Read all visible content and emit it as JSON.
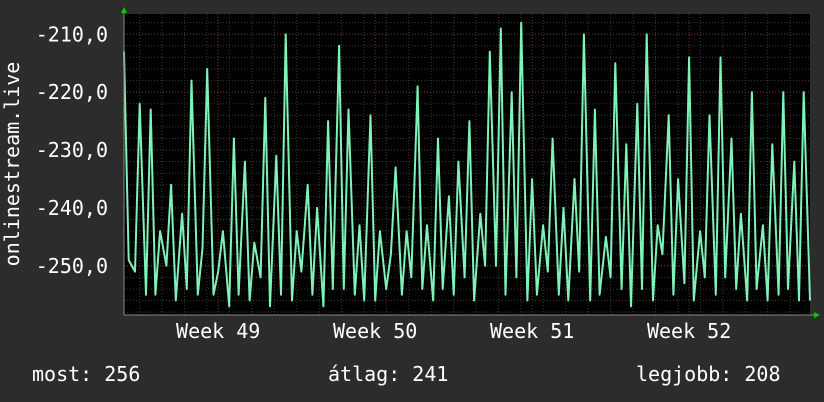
{
  "colors": {
    "background": "#2c2c2c",
    "plot_background": "#000000",
    "line": "#7ff2b8",
    "axis_arrow": "#00cc00",
    "text": "#ffffff",
    "grid_minor": "#3a3a3a",
    "grid_major": "#7a2c2c"
  },
  "stats": {
    "now_label": "most:",
    "now_value": "256",
    "avg_label": "átlag:",
    "avg_value": "241",
    "best_label": "legjobb:",
    "best_value": "208"
  },
  "chart_data": {
    "type": "line",
    "title": "",
    "ylabel": "onlinestream.live",
    "xlabel": "",
    "ylim": [
      -258.5,
      -206.5
    ],
    "yticks": [
      -210,
      -220,
      -230,
      -240,
      -250
    ],
    "ytick_labels": [
      "-210,0",
      "-220,0",
      "-230,0",
      "-240,0",
      "-250,0"
    ],
    "xlim": [
      48.4,
      52.77
    ],
    "xticks": [
      49,
      50,
      51,
      52
    ],
    "xtick_labels": [
      "Week 49",
      "Week 50",
      "Week 51",
      "Week 52"
    ],
    "grid": true,
    "series": [
      {
        "x": [
          48.4,
          48.43,
          48.47,
          48.5,
          48.54,
          48.57,
          48.6,
          48.63,
          48.67,
          48.7,
          48.73,
          48.77,
          48.8,
          48.83,
          48.87,
          48.9,
          48.93,
          48.97,
          49.0,
          49.03,
          49.07,
          49.1,
          49.13,
          49.17,
          49.2,
          49.23,
          49.27,
          49.3,
          49.33,
          49.37,
          49.4,
          49.43,
          49.47,
          49.5,
          49.53,
          49.57,
          49.6,
          49.63,
          49.67,
          49.7,
          49.73,
          49.77,
          49.8,
          49.83,
          49.87,
          49.9,
          49.93,
          49.97,
          50.0,
          50.03,
          50.07,
          50.1,
          50.13,
          50.17,
          50.2,
          50.23,
          50.27,
          50.3,
          50.33,
          50.37,
          50.4,
          50.43,
          50.47,
          50.5,
          50.53,
          50.57,
          50.6,
          50.63,
          50.67,
          50.7,
          50.73,
          50.77,
          50.8,
          50.83,
          50.87,
          50.9,
          50.93,
          50.97,
          51.0,
          51.03,
          51.07,
          51.1,
          51.13,
          51.17,
          51.2,
          51.23,
          51.27,
          51.3,
          51.33,
          51.37,
          51.4,
          51.43,
          51.47,
          51.5,
          51.53,
          51.57,
          51.6,
          51.63,
          51.67,
          51.7,
          51.73,
          51.77,
          51.8,
          51.83,
          51.87,
          51.9,
          51.93,
          51.97,
          52.0,
          52.03,
          52.07,
          52.1,
          52.13,
          52.17,
          52.2,
          52.23,
          52.27,
          52.3,
          52.33,
          52.37,
          52.4,
          52.43,
          52.47,
          52.5,
          52.53,
          52.57,
          52.6,
          52.63,
          52.67,
          52.7,
          52.73,
          52.77
        ],
        "values": [
          -213,
          -249,
          -251,
          -222,
          -255,
          -223,
          -255,
          -244,
          -250,
          -236,
          -256,
          -241,
          -254,
          -218,
          -255,
          -247,
          -216,
          -255,
          -251,
          -244,
          -257,
          -228,
          -255,
          -232,
          -256,
          -246,
          -252,
          -221,
          -257,
          -231,
          -255,
          -210,
          -256,
          -244,
          -251,
          -236,
          -255,
          -240,
          -257,
          -225,
          -254,
          -212,
          -254,
          -223,
          -255,
          -243,
          -256,
          -224,
          -256,
          -244,
          -254,
          -248,
          -233,
          -255,
          -244,
          -252,
          -219,
          -254,
          -243,
          -256,
          -228,
          -254,
          -238,
          -255,
          -232,
          -252,
          -225,
          -256,
          -241,
          -250,
          -213,
          -250,
          -209,
          -255,
          -220,
          -252,
          -208,
          -256,
          -235,
          -255,
          -243,
          -251,
          -228,
          -255,
          -240,
          -256,
          -235,
          -251,
          -210,
          -256,
          -223,
          -255,
          -245,
          -252,
          -215,
          -254,
          -229,
          -257,
          -222,
          -254,
          -210,
          -256,
          -243,
          -248,
          -224,
          -255,
          -235,
          -253,
          -214,
          -256,
          -244,
          -252,
          -224,
          -255,
          -214,
          -252,
          -228,
          -254,
          -241,
          -256,
          -220,
          -254,
          -243,
          -256,
          -229,
          -255,
          -220,
          -254,
          -232,
          -256,
          -220,
          -256
        ]
      }
    ]
  }
}
